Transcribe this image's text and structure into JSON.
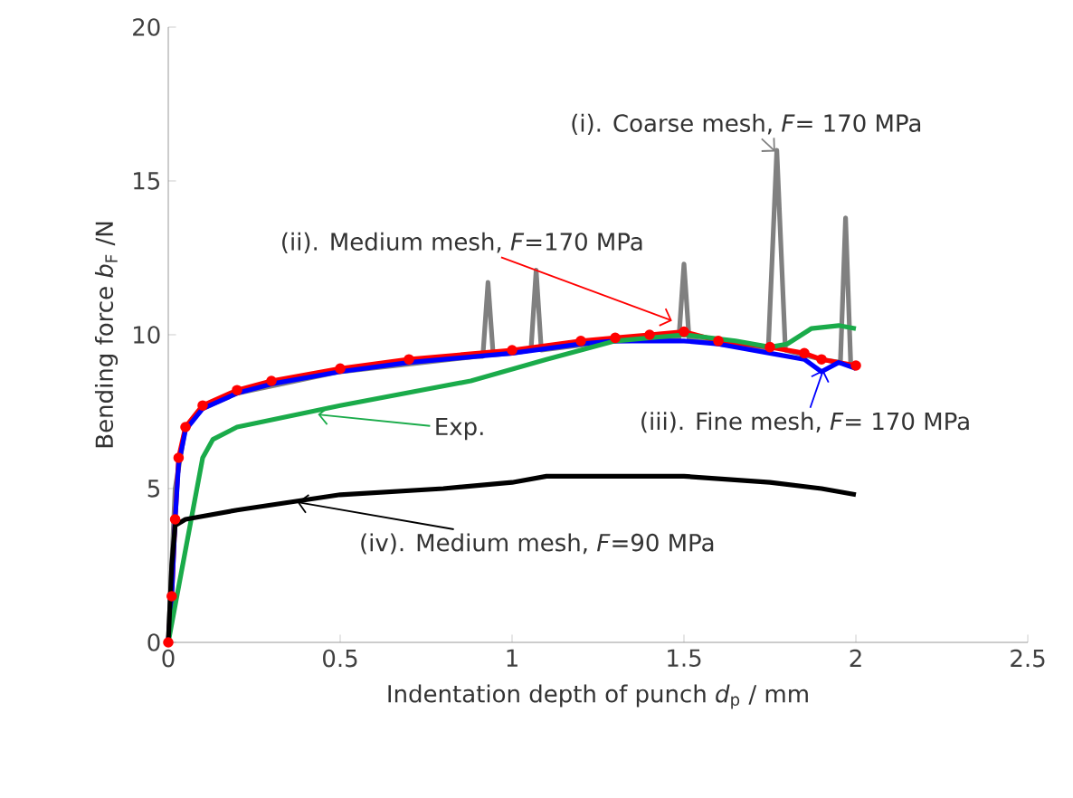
{
  "chart_data": {
    "type": "line",
    "xlabel": "Indentation depth of punch *d*$_{p}$ / mm",
    "ylabel": "Bending force  *b*$_{F}$ /N",
    "xlim": [
      0,
      2.5
    ],
    "ylim": [
      0,
      20
    ],
    "xticks": [
      0,
      0.5,
      1,
      1.5,
      2,
      2.5
    ],
    "yticks": [
      0,
      5,
      10,
      15,
      20
    ],
    "grid": false,
    "line_style": "solid",
    "series": [
      {
        "color": "#808080",
        "marker": "none",
        "x": [
          0,
          0.02,
          0.05,
          0.1,
          0.2,
          0.5,
          0.9,
          0.915,
          0.93,
          0.945,
          1.0,
          1.055,
          1.07,
          1.085,
          1.3,
          1.485,
          1.5,
          1.515,
          1.6,
          1.745,
          1.77,
          1.795,
          1.9,
          1.955,
          1.97,
          1.985,
          2.0
        ],
        "values": [
          0,
          5,
          7,
          7.6,
          8.1,
          8.8,
          9.3,
          9.3,
          11.7,
          9.35,
          9.4,
          9.5,
          12.1,
          9.5,
          9.8,
          9.85,
          12.3,
          9.85,
          9.7,
          9.5,
          16.0,
          9.5,
          9.2,
          9.1,
          13.8,
          9.05,
          9.0
        ]
      },
      {
        "color": "#ff0000",
        "marker": "circle",
        "x": [
          0,
          0.01,
          0.02,
          0.03,
          0.05,
          0.1,
          0.2,
          0.3,
          0.5,
          0.7,
          1.0,
          1.2,
          1.3,
          1.4,
          1.5,
          1.6,
          1.75,
          1.85,
          1.9,
          2.0
        ],
        "values": [
          0,
          1.5,
          4,
          6,
          7,
          7.7,
          8.2,
          8.5,
          8.9,
          9.2,
          9.5,
          9.8,
          9.9,
          10.0,
          10.1,
          9.8,
          9.6,
          9.4,
          9.2,
          9.0
        ]
      },
      {
        "color": "#0000ff",
        "marker": "none",
        "x": [
          0,
          0.01,
          0.02,
          0.03,
          0.05,
          0.1,
          0.2,
          0.3,
          0.5,
          0.7,
          1.0,
          1.2,
          1.3,
          1.5,
          1.6,
          1.75,
          1.85,
          1.9,
          1.95,
          2.0
        ],
        "values": [
          0,
          1.5,
          4,
          5.8,
          6.9,
          7.6,
          8.1,
          8.4,
          8.8,
          9.1,
          9.4,
          9.7,
          9.8,
          9.8,
          9.7,
          9.4,
          9.2,
          8.8,
          9.1,
          8.9
        ]
      },
      {
        "color": "#1aab4a",
        "marker": "none",
        "x": [
          0,
          0.05,
          0.1,
          0.13,
          0.2,
          0.5,
          0.88,
          1.1,
          1.3,
          1.5,
          1.65,
          1.75,
          1.8,
          1.87,
          1.95,
          2.0
        ],
        "values": [
          0,
          3,
          6,
          6.6,
          7.0,
          7.7,
          8.5,
          9.2,
          9.8,
          10.0,
          9.8,
          9.6,
          9.7,
          10.2,
          10.3,
          10.2
        ]
      },
      {
        "color": "#000000",
        "marker": "none",
        "x": [
          0,
          0.01,
          0.02,
          0.05,
          0.2,
          0.5,
          0.8,
          1.0,
          1.1,
          1.3,
          1.5,
          1.75,
          1.9,
          2.0
        ],
        "values": [
          0,
          2.5,
          3.8,
          4.0,
          4.3,
          4.8,
          5.0,
          5.2,
          5.4,
          5.4,
          5.4,
          5.2,
          5.0,
          4.8
        ]
      }
    ],
    "annotations": [
      {
        "text": "(i). Coarse mesh, *F*= 170 MPa",
        "x": 1.76,
        "y": 15.9
      },
      {
        "text": "(ii). Medium mesh, *F*=170 MPa",
        "x": 1.46,
        "y": 10.4
      },
      {
        "text": "Exp.",
        "x": 0.43,
        "y": 7.35
      },
      {
        "text": "(iii). Fine mesh, *F*= 170 MPa",
        "x": 1.9,
        "y": 8.8
      },
      {
        "text": "(iv). Medium mesh, *F*=90 MPa",
        "x": 0.37,
        "y": 4.5
      }
    ]
  }
}
